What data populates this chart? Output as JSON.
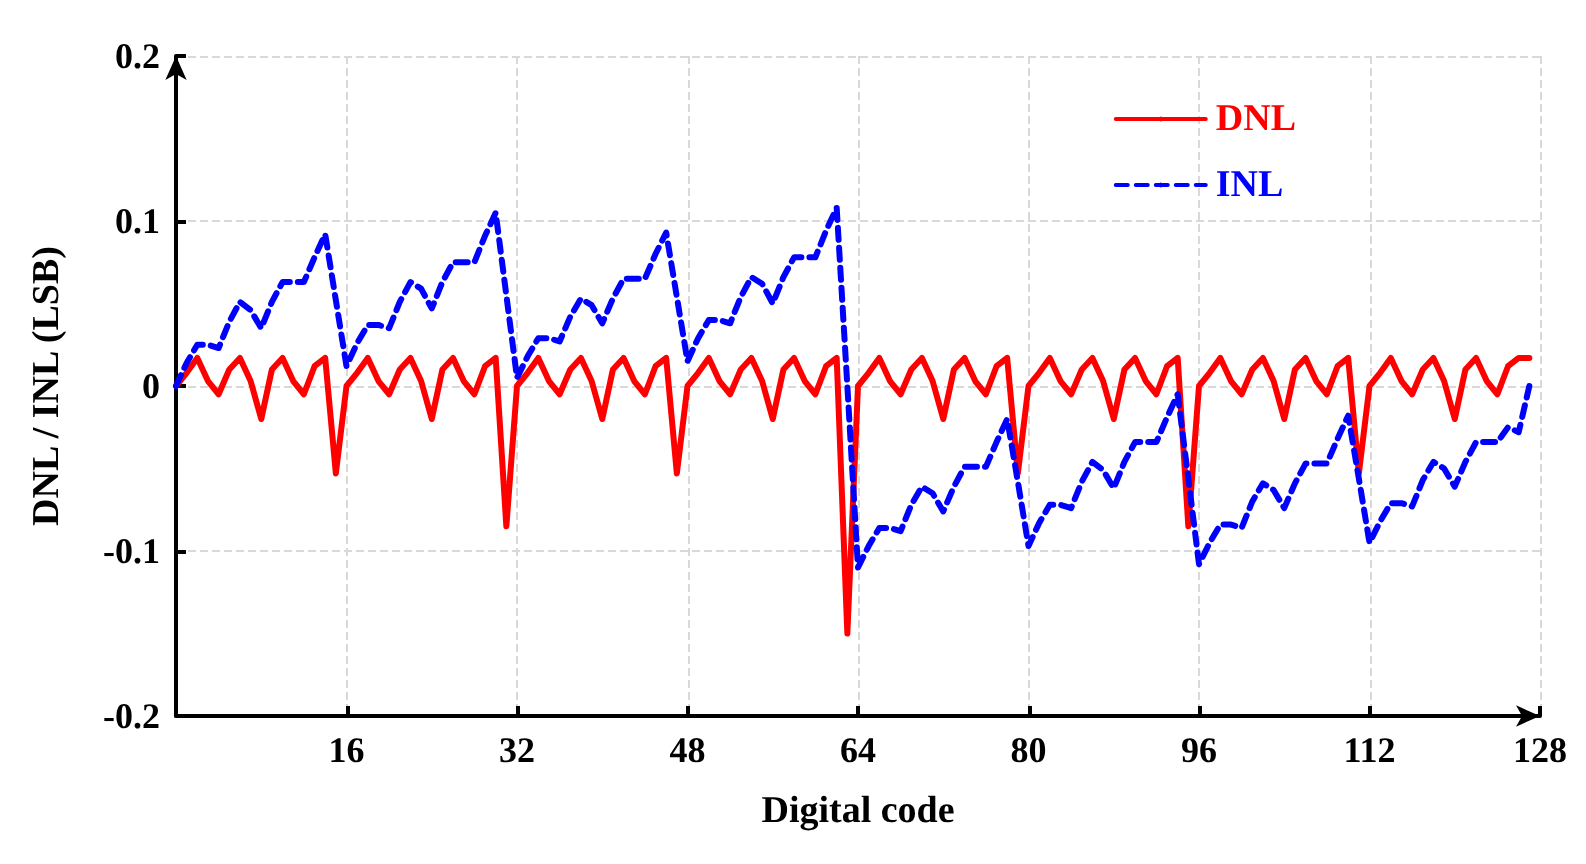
{
  "chart_data": {
    "type": "line",
    "xlabel": "Digital code",
    "ylabel": "DNL / INL (LSB)",
    "xlim": [
      0,
      128
    ],
    "xticks": [
      {
        "value": 0,
        "label": null
      },
      16,
      32,
      48,
      64,
      80,
      96,
      112,
      128
    ],
    "ylim": [
      -0.2,
      0.2
    ],
    "yticks": [
      -0.2,
      -0.1,
      0,
      0.1,
      0.2
    ],
    "grid": true,
    "legend": "top right",
    "marker": "none",
    "x": [
      0,
      1,
      2,
      3,
      4,
      5,
      6,
      7,
      8,
      9,
      10,
      11,
      12,
      13,
      14,
      15,
      16,
      17,
      18,
      19,
      20,
      21,
      22,
      23,
      24,
      25,
      26,
      27,
      28,
      29,
      30,
      31,
      32,
      33,
      34,
      35,
      36,
      37,
      38,
      39,
      40,
      41,
      42,
      43,
      44,
      45,
      46,
      47,
      48,
      49,
      50,
      51,
      52,
      53,
      54,
      55,
      56,
      57,
      58,
      59,
      60,
      61,
      62,
      63,
      64,
      65,
      66,
      67,
      68,
      69,
      70,
      71,
      72,
      73,
      74,
      75,
      76,
      77,
      78,
      79,
      80,
      81,
      82,
      83,
      84,
      85,
      86,
      87,
      88,
      89,
      90,
      91,
      92,
      93,
      94,
      95,
      96,
      97,
      98,
      99,
      100,
      101,
      102,
      103,
      104,
      105,
      106,
      107,
      108,
      109,
      110,
      111,
      112,
      113,
      114,
      115,
      116,
      117,
      118,
      119,
      120,
      121,
      122,
      123,
      124,
      125,
      126,
      127
    ],
    "series": [
      {
        "name": "DNL",
        "color": "#ff0000",
        "line_style": "solid",
        "values": [
          0,
          0.008,
          0.017,
          0.003,
          -0.005,
          0.01,
          0.017,
          0.003,
          -0.02,
          0.01,
          0.017,
          0.003,
          -0.005,
          0.012,
          0.017,
          -0.053,
          0,
          0.008,
          0.017,
          0.003,
          -0.005,
          0.01,
          0.017,
          0.003,
          -0.02,
          0.01,
          0.017,
          0.003,
          -0.005,
          0.012,
          0.017,
          -0.085,
          0,
          0.008,
          0.017,
          0.003,
          -0.005,
          0.01,
          0.017,
          0.003,
          -0.02,
          0.01,
          0.017,
          0.003,
          -0.005,
          0.012,
          0.017,
          -0.053,
          0,
          0.008,
          0.017,
          0.003,
          -0.005,
          0.01,
          0.017,
          0.003,
          -0.02,
          0.01,
          0.017,
          0.003,
          -0.005,
          0.012,
          0.017,
          -0.15,
          0,
          0.008,
          0.017,
          0.003,
          -0.005,
          0.01,
          0.017,
          0.003,
          -0.02,
          0.01,
          0.017,
          0.003,
          -0.005,
          0.012,
          0.017,
          -0.053,
          0,
          0.008,
          0.017,
          0.003,
          -0.005,
          0.01,
          0.017,
          0.003,
          -0.02,
          0.01,
          0.017,
          0.003,
          -0.005,
          0.012,
          0.017,
          -0.085,
          0,
          0.008,
          0.017,
          0.003,
          -0.005,
          0.01,
          0.017,
          0.003,
          -0.02,
          0.01,
          0.017,
          0.003,
          -0.005,
          0.012,
          0.017,
          -0.053,
          0,
          0.008,
          0.017,
          0.003,
          -0.005,
          0.01,
          0.017,
          0.003,
          -0.02,
          0.01,
          0.017,
          0.003,
          -0.005,
          0.012,
          0.017,
          0.017
        ]
      },
      {
        "name": "INL",
        "color": "#0000ff",
        "line_style": "dashed",
        "values": [
          0,
          0.014,
          0.025,
          0.025,
          0.023,
          0.039,
          0.051,
          0.046,
          0.035,
          0.051,
          0.063,
          0.063,
          0.063,
          0.078,
          0.092,
          0.052,
          0.012,
          0.026,
          0.037,
          0.037,
          0.035,
          0.051,
          0.063,
          0.059,
          0.047,
          0.063,
          0.075,
          0.075,
          0.075,
          0.091,
          0.105,
          0.055,
          0.005,
          0.018,
          0.029,
          0.029,
          0.027,
          0.042,
          0.053,
          0.049,
          0.038,
          0.053,
          0.065,
          0.065,
          0.065,
          0.08,
          0.093,
          0.054,
          0.015,
          0.029,
          0.04,
          0.04,
          0.038,
          0.054,
          0.066,
          0.062,
          0.05,
          0.066,
          0.078,
          0.078,
          0.078,
          0.094,
          0.108,
          0,
          -0.11,
          -0.097,
          -0.086,
          -0.086,
          -0.088,
          -0.072,
          -0.061,
          -0.065,
          -0.076,
          -0.061,
          -0.049,
          -0.049,
          -0.049,
          -0.034,
          -0.02,
          -0.058,
          -0.097,
          -0.083,
          -0.072,
          -0.072,
          -0.074,
          -0.058,
          -0.046,
          -0.051,
          -0.062,
          -0.046,
          -0.034,
          -0.034,
          -0.034,
          -0.019,
          -0.005,
          -0.056,
          -0.108,
          -0.095,
          -0.084,
          -0.084,
          -0.086,
          -0.07,
          -0.059,
          -0.063,
          -0.074,
          -0.059,
          -0.047,
          -0.047,
          -0.047,
          -0.032,
          -0.018,
          -0.056,
          -0.095,
          -0.082,
          -0.071,
          -0.071,
          -0.073,
          -0.057,
          -0.046,
          -0.05,
          -0.061,
          -0.046,
          -0.034,
          -0.034,
          -0.034,
          -0.025,
          -0.028,
          0
        ]
      }
    ]
  }
}
